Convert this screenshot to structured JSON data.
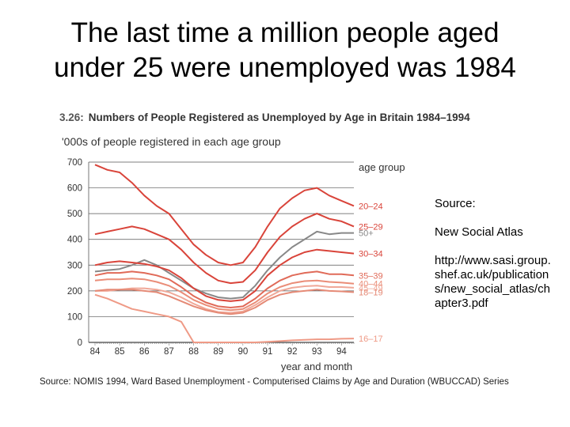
{
  "slide": {
    "title_line1": "The last time a million people aged",
    "title_line2": "under 25 were unemployed was 1984"
  },
  "source_note": {
    "label": "Source:",
    "atlas": "New Social Atlas",
    "url": "http://www.sasi.group.shef.ac.uk/publications/new_social_atlas/chapter3.pdf"
  },
  "footer": "Source: NOMIS 1994, Ward Based Unemployment - Computerised Claims by Age and Duration (WBUCCAD) Series",
  "chart_data": {
    "type": "line",
    "figure_number": "3.26:",
    "title": "Numbers of People Registered as Unemployed by Age in Britain 1984–1994",
    "ylabel": "'000s of people registered in each age group",
    "xlabel": "year and month",
    "legend_title": "age group",
    "ylim": [
      0,
      700
    ],
    "yticks": [
      "0",
      "100",
      "200",
      "300",
      "400",
      "500",
      "600",
      "700"
    ],
    "xticks": [
      "84",
      "85",
      "86",
      "87",
      "88",
      "89",
      "90",
      "91",
      "92",
      "93",
      "94"
    ],
    "x": [
      84.0,
      84.5,
      85.0,
      85.5,
      86.0,
      86.5,
      87.0,
      87.5,
      88.0,
      88.5,
      89.0,
      89.5,
      90.0,
      90.5,
      91.0,
      91.5,
      92.0,
      92.5,
      93.0,
      93.5,
      94.0,
      94.5
    ],
    "series": [
      {
        "name": "20–24",
        "color": "#d9443a",
        "values": [
          690,
          670,
          660,
          620,
          570,
          530,
          500,
          440,
          380,
          340,
          310,
          300,
          310,
          370,
          450,
          520,
          560,
          590,
          600,
          570,
          550,
          530
        ]
      },
      {
        "name": "25–29",
        "color": "#d9443a",
        "values": [
          420,
          430,
          440,
          450,
          440,
          420,
          400,
          360,
          310,
          270,
          240,
          230,
          235,
          280,
          350,
          410,
          450,
          480,
          500,
          480,
          470,
          450
        ]
      },
      {
        "name": "50+",
        "color": "#888888",
        "values": [
          275,
          280,
          285,
          300,
          320,
          300,
          270,
          240,
          210,
          190,
          175,
          170,
          175,
          220,
          280,
          330,
          370,
          400,
          430,
          420,
          425,
          425
        ]
      },
      {
        "name": "30–34",
        "color": "#d9443a",
        "values": [
          300,
          310,
          315,
          310,
          305,
          295,
          280,
          250,
          210,
          180,
          165,
          160,
          165,
          200,
          260,
          300,
          330,
          350,
          360,
          355,
          350,
          345
        ]
      },
      {
        "name": "35–39",
        "color": "#e06a58",
        "values": [
          260,
          270,
          270,
          275,
          270,
          260,
          245,
          215,
          180,
          155,
          140,
          135,
          140,
          170,
          210,
          240,
          260,
          270,
          275,
          265,
          265,
          260
        ]
      },
      {
        "name": "40–44",
        "color": "#ea8d78",
        "values": [
          240,
          245,
          245,
          248,
          245,
          235,
          220,
          195,
          165,
          145,
          130,
          125,
          130,
          155,
          190,
          215,
          230,
          238,
          240,
          235,
          232,
          228
        ]
      },
      {
        "name": "45–49",
        "color": "#f0a898",
        "values": [
          200,
          200,
          205,
          210,
          210,
          205,
          195,
          175,
          150,
          130,
          118,
          115,
          120,
          145,
          175,
          200,
          212,
          218,
          220,
          215,
          215,
          212
        ]
      },
      {
        "name": "18–19",
        "color": "#e58a76",
        "values": [
          200,
          205,
          205,
          205,
          200,
          195,
          180,
          160,
          140,
          125,
          115,
          110,
          115,
          135,
          165,
          185,
          195,
          200,
          205,
          200,
          198,
          195
        ]
      },
      {
        "name": "16–17",
        "color": "#ef9a86",
        "values": [
          185,
          170,
          150,
          130,
          120,
          110,
          100,
          80,
          0,
          0,
          0,
          0,
          0,
          0,
          2,
          5,
          8,
          10,
          12,
          12,
          14,
          15
        ]
      }
    ]
  }
}
